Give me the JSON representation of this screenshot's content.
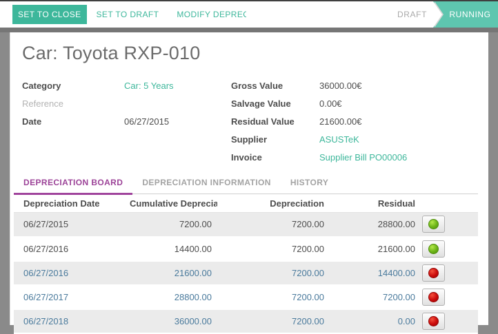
{
  "toolbar": {
    "set_to_close": "SET TO CLOSE",
    "set_to_draft": "SET TO DRAFT",
    "modify_depreciation": "MODIFY DEPRECIAT",
    "status_draft": "DRAFT",
    "status_running": "RUNNING"
  },
  "sheet": {
    "title": "Car: Toyota RXP-010",
    "fields_left": [
      {
        "label": "Category",
        "value": "Car: 5 Years"
      },
      {
        "label": "Reference",
        "value": ""
      },
      {
        "label": "Date",
        "value": "06/27/2015"
      }
    ],
    "fields_right": [
      {
        "label": "Gross Value",
        "value": "36000.00€"
      },
      {
        "label": "Salvage Value",
        "value": "0.00€"
      },
      {
        "label": "Residual Value",
        "value": "21600.00€"
      },
      {
        "label": "Supplier",
        "value": "ASUSTeK"
      },
      {
        "label": "Invoice",
        "value": "Supplier Bill PO00006"
      }
    ],
    "tabs": [
      {
        "label": "DEPRECIATION BOARD"
      },
      {
        "label": "DEPRECIATION INFORMATION"
      },
      {
        "label": "HISTORY"
      }
    ],
    "table": {
      "headers": [
        "Depreciation Date",
        "Cumulative Depreciation",
        "Depreciation",
        "Residual"
      ],
      "rows": [
        {
          "date": "06/27/2015",
          "cumulative": "7200.00",
          "depreciation": "7200.00",
          "residual": "28800.00",
          "status": "posted"
        },
        {
          "date": "06/27/2016",
          "cumulative": "14400.00",
          "depreciation": "7200.00",
          "residual": "21600.00",
          "status": "posted"
        },
        {
          "date": "06/27/2016",
          "cumulative": "21600.00",
          "depreciation": "7200.00",
          "residual": "14400.00",
          "status": "unposted"
        },
        {
          "date": "06/27/2017",
          "cumulative": "28800.00",
          "depreciation": "7200.00",
          "residual": "7200.00",
          "status": "unposted"
        },
        {
          "date": "06/27/2018",
          "cumulative": "36000.00",
          "depreciation": "7200.00",
          "residual": "0.00",
          "status": "unposted"
        }
      ]
    }
  },
  "colors": {
    "accent_teal": "#3db79b",
    "status_running_bg": "#5ec6af",
    "active_tab_purple": "#9c4398",
    "unposted_row_blue": "#4a7a9c",
    "led_green": "#6cb417",
    "led_red": "#cb0b0b"
  }
}
